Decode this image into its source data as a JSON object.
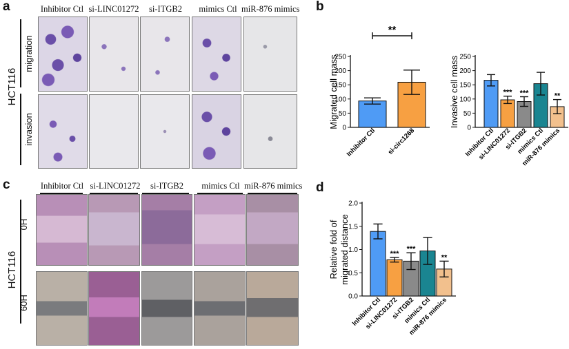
{
  "panels": {
    "a": {
      "letter": "a",
      "columns": [
        "Inhibitor Ctl",
        "si-LINC01272",
        "si-ITGB2",
        "mimics Ctl",
        "miR-876 mimics"
      ],
      "cell_line": "HCT116",
      "rows": [
        "migration",
        "invasion"
      ]
    },
    "c": {
      "letter": "c",
      "columns": [
        "Inhibitor Ctl",
        "si-LINC01272",
        "si-ITGB2",
        "mimics Ctl",
        "miR-876 mimics"
      ],
      "cell_line": "HCT116",
      "rows": [
        "0H",
        "60H"
      ]
    },
    "b": {
      "letter": "b"
    },
    "d": {
      "letter": "d"
    }
  },
  "colors": {
    "blue": "#4f9bf5",
    "orange": "#f7a042",
    "gray": "#8a8a8a",
    "teal": "#1a8591",
    "peach": "#f2c08d",
    "stain_purple": "#6a4fa8",
    "scratch_pink": "#c79ac7"
  },
  "chart_data": [
    {
      "type": "bar",
      "id": "b-left",
      "categories": [
        "Inhibitor Ctl",
        "si-circ1268"
      ],
      "values": [
        93,
        159
      ],
      "errors": [
        11,
        43
      ],
      "colors": [
        "#4f9bf5",
        "#f7a042"
      ],
      "ylabel": "Migrated cell mass",
      "ylim": [
        0,
        250
      ],
      "yticks": [
        0,
        50,
        100,
        150,
        200,
        250
      ],
      "significance": {
        "from": 0,
        "to": 1,
        "label": "**"
      }
    },
    {
      "type": "bar",
      "id": "b-right",
      "categories": [
        "Inhibitor Ctl",
        "si-LINC01272",
        "si-ITGB2",
        "mimics Ctl",
        "miR-876 mimics"
      ],
      "values": [
        166,
        97,
        91,
        154,
        73
      ],
      "errors": [
        20,
        13,
        17,
        40,
        25
      ],
      "colors": [
        "#4f9bf5",
        "#f7a042",
        "#8a8a8a",
        "#1a8591",
        "#f2c08d"
      ],
      "annotations": [
        "",
        "***",
        "***",
        "",
        "**"
      ],
      "ylabel": "Invasive cell mass",
      "ylim": [
        0,
        250
      ],
      "yticks": [
        0,
        50,
        100,
        150,
        200,
        250
      ]
    },
    {
      "type": "bar",
      "id": "d",
      "categories": [
        "Inhibitor Ctl",
        "si-LINC01272",
        "si-ITGB2",
        "mimics Ctl",
        "miR-876 mimics"
      ],
      "values": [
        1.39,
        0.78,
        0.75,
        0.97,
        0.58
      ],
      "errors": [
        0.16,
        0.05,
        0.18,
        0.29,
        0.17
      ],
      "colors": [
        "#4f9bf5",
        "#f7a042",
        "#8a8a8a",
        "#1a8591",
        "#f2c08d"
      ],
      "annotations": [
        "",
        "***",
        "***",
        "",
        "**"
      ],
      "ylabel": [
        "Relative fold of",
        "migrated distance"
      ],
      "ylim": [
        0,
        2.0
      ],
      "yticks": [
        "0.0",
        "0.5",
        "1.0",
        "1.5",
        "2.0"
      ]
    }
  ]
}
